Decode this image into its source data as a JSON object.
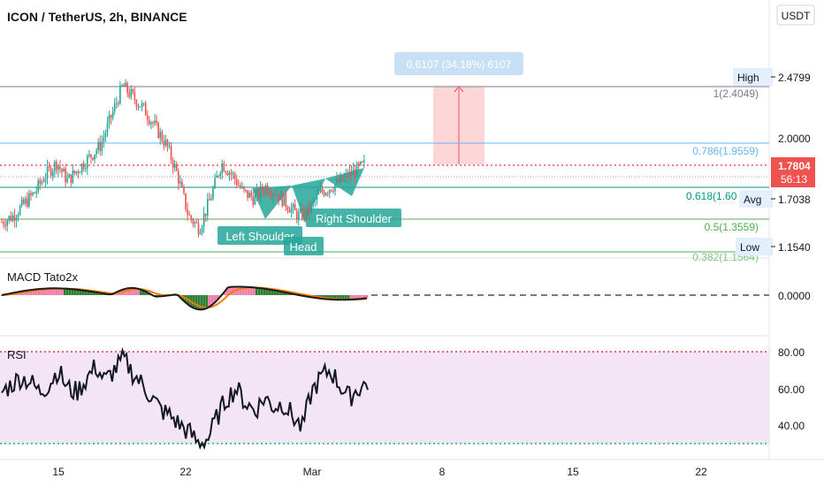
{
  "header": {
    "title": "ICON / TetherUS, 2h, BINANCE",
    "currency_button": "USDT"
  },
  "colors": {
    "up": "#26a69a",
    "down": "#ef5350",
    "fib_786": "#64b5f6",
    "fib_618": "#009688",
    "fib_5": "#4caf50",
    "pattern": "#26a69a",
    "rsi_bg": "#f3e5f5",
    "rsi_bound": "#e53935",
    "rsi_low": "#00c853",
    "macd_pos": "#ef7fa9",
    "macd_neg": "#2e7d32",
    "signal": "#f57c00",
    "price_badge": "#ef5350",
    "target_box": "#fdd6d7",
    "target_label": "#c8e0f6"
  },
  "chart_data": [
    {
      "type": "candlestick",
      "name": "price",
      "x_labels": [
        "15",
        "22",
        "Mar",
        "8",
        "15",
        "22"
      ],
      "y_ticks": [
        "2.0000"
      ],
      "price_markers": {
        "high": {
          "label": "High",
          "value": "2.4799"
        },
        "avg": {
          "label": "Avg",
          "value": "1.7038"
        },
        "low": {
          "label": "Low",
          "value": "1.1540"
        },
        "last": {
          "value": "1.7804",
          "countdown": "56:13"
        }
      },
      "fib_levels": [
        {
          "label": "1(2.4049)"
        },
        {
          "label": "0.786(1.9559)"
        },
        {
          "label": "0.618(1.60"
        },
        {
          "label": "0.5(1.3559)"
        },
        {
          "label": "0.382(1.1564)"
        }
      ],
      "target_label": "0.6107 (34.18%) 6107",
      "pattern_labels": {
        "left": "Left Shoulder",
        "head": "Head",
        "right": "Right Shoulder"
      },
      "series_trend": [
        1.3,
        1.35,
        1.45,
        1.55,
        1.7,
        1.8,
        1.65,
        1.75,
        1.85,
        1.95,
        2.2,
        2.45,
        2.35,
        2.25,
        2.1,
        1.95,
        1.7,
        1.35,
        1.25,
        1.5,
        1.8,
        1.7,
        1.55,
        1.5,
        1.6,
        1.55,
        1.45,
        1.35,
        1.4,
        1.55,
        1.6,
        1.65,
        1.72,
        1.78
      ]
    },
    {
      "type": "histogram+line",
      "name": "MACD Tato2x",
      "y_ticks": [
        "0.0000"
      ]
    },
    {
      "type": "line",
      "name": "RSI",
      "y_ticks": [
        "80.00",
        "60.00",
        "40.00"
      ],
      "upper": 80,
      "lower": 30,
      "values": [
        58,
        62,
        66,
        64,
        58,
        62,
        70,
        60,
        58,
        65,
        72,
        64,
        70,
        76,
        68,
        62,
        55,
        48,
        45,
        40,
        36,
        30,
        33,
        45,
        55,
        60,
        52,
        48,
        55,
        50,
        52,
        45,
        38,
        58,
        66,
        70,
        62,
        55,
        60,
        63
      ]
    }
  ]
}
